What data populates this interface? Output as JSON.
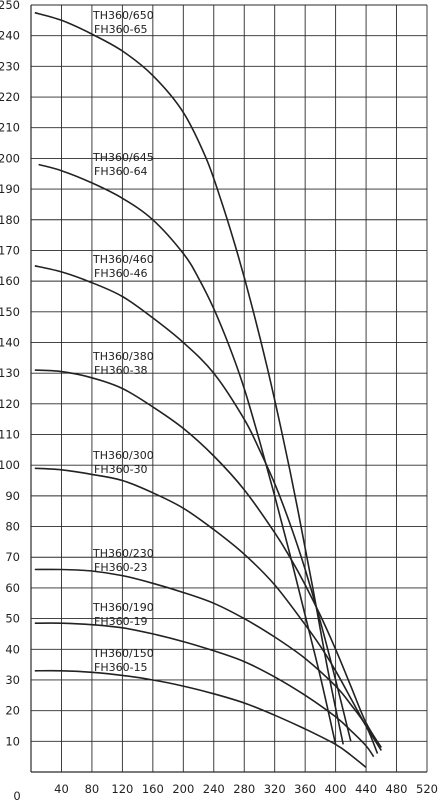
{
  "chart_data": {
    "type": "line",
    "title": "",
    "xlabel": "",
    "ylabel": "",
    "xlim": [
      0,
      520
    ],
    "ylim": [
      0,
      250
    ],
    "origin_label": "0",
    "x_ticks": [
      40,
      80,
      120,
      160,
      200,
      240,
      280,
      320,
      360,
      400,
      440,
      480,
      520
    ],
    "y_ticks": [
      10,
      20,
      30,
      40,
      50,
      60,
      70,
      80,
      90,
      100,
      110,
      120,
      130,
      140,
      150,
      160,
      170,
      180,
      190,
      200,
      210,
      220,
      230,
      240,
      250
    ],
    "grid": true,
    "series": [
      {
        "name": "TH360/650 FH360-65",
        "label_lines": [
          "TH360/650",
          "FH360-65"
        ],
        "x": [
          5,
          40,
          80,
          120,
          160,
          200,
          230,
          250,
          270,
          290,
          310,
          330,
          350,
          370,
          390,
          410
        ],
        "y": [
          247.5,
          245,
          240.5,
          235,
          227,
          215,
          200,
          186,
          170,
          152,
          132,
          110,
          86,
          60,
          33,
          9
        ]
      },
      {
        "name": "TH360/645 FH360-64",
        "label_lines": [
          "TH360/645",
          "FH360-64"
        ],
        "x": [
          10,
          40,
          80,
          120,
          160,
          200,
          220,
          240,
          260,
          280,
          300,
          320,
          340,
          360,
          380,
          400
        ],
        "y": [
          198,
          196,
          192,
          187,
          180,
          169,
          161,
          151,
          139,
          125,
          108,
          90,
          71,
          51,
          31,
          9
        ]
      },
      {
        "name": "TH360/460 FH360-46",
        "label_lines": [
          "TH360/460",
          "FH360-46"
        ],
        "x": [
          5,
          40,
          80,
          120,
          160,
          200,
          240,
          280,
          300,
          320,
          340,
          360,
          380,
          400,
          420
        ],
        "y": [
          165,
          163,
          159.5,
          155,
          148,
          140,
          130,
          115,
          105,
          94,
          81,
          66,
          49,
          30,
          10
        ]
      },
      {
        "name": "TH360/380 FH360-38",
        "label_lines": [
          "TH360/380",
          "FH360-38"
        ],
        "x": [
          5,
          40,
          80,
          120,
          160,
          200,
          240,
          280,
          320,
          340,
          360,
          380,
          400,
          420,
          440,
          460
        ],
        "y": [
          131,
          130.5,
          128.5,
          125,
          119,
          112,
          103,
          92,
          78,
          70,
          61,
          51,
          40,
          28,
          16,
          8
        ]
      },
      {
        "name": "TH360/300 FH360-30",
        "label_lines": [
          "TH360/300",
          "FH360-30"
        ],
        "x": [
          5,
          40,
          80,
          120,
          160,
          200,
          240,
          280,
          320,
          360,
          380,
          400,
          420,
          440,
          460
        ],
        "y": [
          99,
          98.5,
          97,
          95,
          91,
          86,
          79,
          71,
          61,
          48,
          41,
          33,
          24,
          15,
          7
        ]
      },
      {
        "name": "TH360/230 FH360-23",
        "label_lines": [
          "TH360/230",
          "FH360-23"
        ],
        "x": [
          5,
          40,
          80,
          120,
          160,
          200,
          240,
          280,
          320,
          360,
          400,
          420,
          440,
          455
        ],
        "y": [
          66,
          66,
          65.5,
          64,
          61.5,
          58.5,
          55,
          50,
          44,
          37,
          28,
          22,
          15,
          6
        ]
      },
      {
        "name": "TH360/190 FH360-19",
        "label_lines": [
          "TH360/190",
          "FH360-19"
        ],
        "x": [
          5,
          40,
          80,
          120,
          160,
          200,
          240,
          280,
          320,
          360,
          400,
          420,
          440,
          450
        ],
        "y": [
          48.5,
          48.5,
          48,
          47,
          45,
          42.5,
          39.5,
          36,
          31,
          25,
          18,
          13.5,
          8.5,
          5
        ]
      },
      {
        "name": "TH360/150 FH360-15",
        "label_lines": [
          "TH360/150",
          "FH360-15"
        ],
        "x": [
          5,
          40,
          80,
          120,
          160,
          200,
          240,
          280,
          320,
          360,
          400,
          420,
          440
        ],
        "y": [
          33,
          33,
          32.5,
          31.5,
          30,
          28,
          25.5,
          22.5,
          18.5,
          14,
          9,
          5.5,
          1.5
        ]
      }
    ]
  }
}
